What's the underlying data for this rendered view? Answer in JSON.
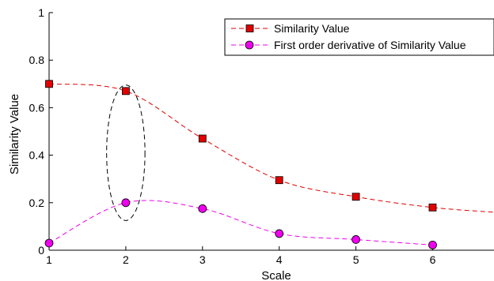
{
  "chart_data": {
    "type": "line",
    "title": "",
    "xlabel": "Scale",
    "ylabel": "Similarity Value",
    "xlim": [
      1,
      6.8
    ],
    "ylim": [
      0,
      1
    ],
    "x_ticks": [
      "1",
      "2",
      "3",
      "4",
      "5",
      "6"
    ],
    "y_ticks": [
      "0",
      "0.2",
      "0.4",
      "0.6",
      "0.8",
      "1"
    ],
    "grid": false,
    "legend_position": "top-right",
    "series": [
      {
        "name": "Similarity Value",
        "color": "#e00000",
        "marker": "square",
        "x": [
          1,
          2,
          3,
          4,
          5,
          6
        ],
        "y": [
          0.7,
          0.67,
          0.47,
          0.295,
          0.225,
          0.18
        ],
        "line_extends_to_x": 6.8,
        "line_end_y": 0.16
      },
      {
        "name": "First order derivative of Similarity Value",
        "color": "#ee00ee",
        "marker": "circle",
        "x": [
          1,
          2,
          3,
          4,
          5,
          6
        ],
        "y": [
          0.03,
          0.2,
          0.175,
          0.07,
          0.045,
          0.022
        ]
      }
    ],
    "annotations": [
      {
        "type": "ellipse",
        "style": "dashed",
        "center_x": 2,
        "center_y": 0.41,
        "radius_x": 0.25,
        "radius_y": 0.285
      }
    ]
  }
}
